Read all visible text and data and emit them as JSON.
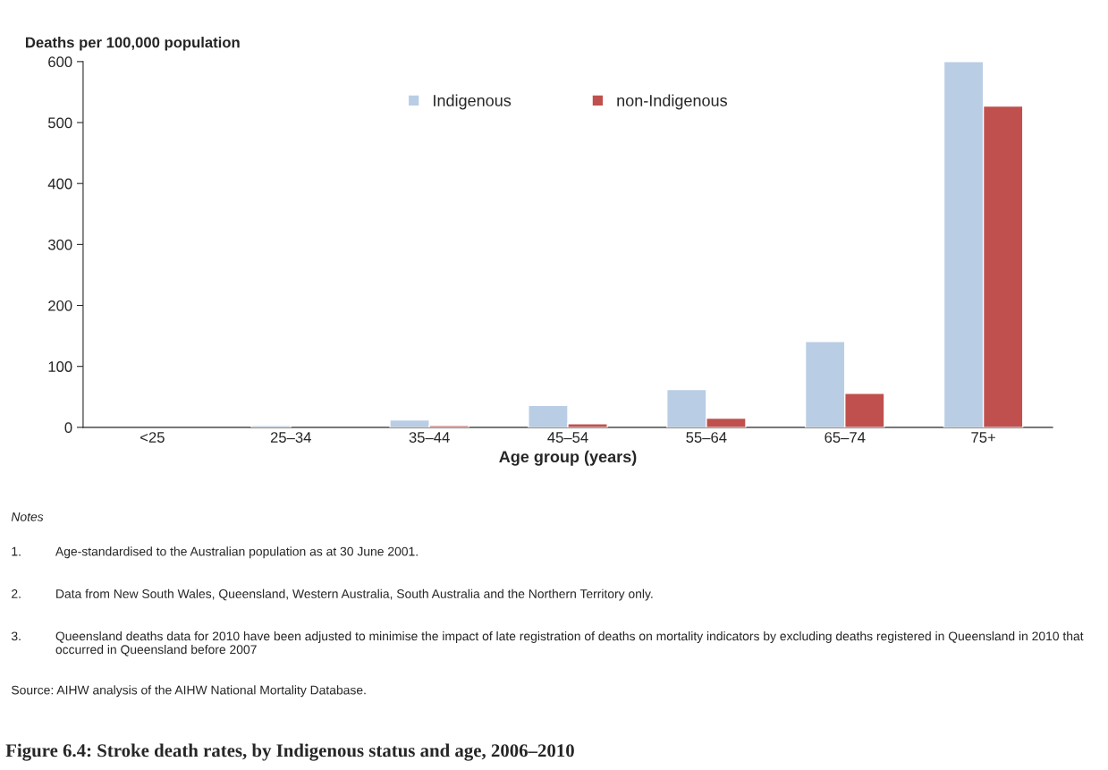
{
  "chart_data": {
    "type": "bar",
    "title": "Figure 6.4: Stroke death rates, by Indigenous status and age, 2006–2010",
    "xlabel": "Age group (years)",
    "ylabel": "Deaths per 100,000 population",
    "categories": [
      "<25",
      "25–34",
      "35–44",
      "45–54",
      "55–64",
      "65–74",
      "75+"
    ],
    "series": [
      {
        "name": "Indigenous",
        "color": "#b9cde5",
        "values": [
          null,
          3,
          12,
          36,
          62,
          141,
          600
        ]
      },
      {
        "name": "non-Indigenous",
        "color": "#c0504d",
        "values": [
          null,
          null,
          3,
          6,
          15,
          56,
          527
        ]
      }
    ],
    "ylim": [
      0,
      600
    ],
    "yticks": [
      0,
      100,
      200,
      300,
      400,
      500,
      600
    ],
    "grid": false,
    "legend": "top",
    "annotations": [
      "Notes",
      "1.\tAge-standardised to the Australian population as at 30 June 2001.",
      "2.\tData from New South Wales, Queensland, Western Australia, South Australia and the Northern Territory only.",
      "3.\tQueensland deaths data for 2010 have been adjusted to minimise the impact of late registration of deaths on mortality indicators by excluding deaths registered in Queensland in 2010 that occurred in Queensland before 2007",
      "Source: AIHW analysis of the AIHW National Mortality Database."
    ]
  }
}
